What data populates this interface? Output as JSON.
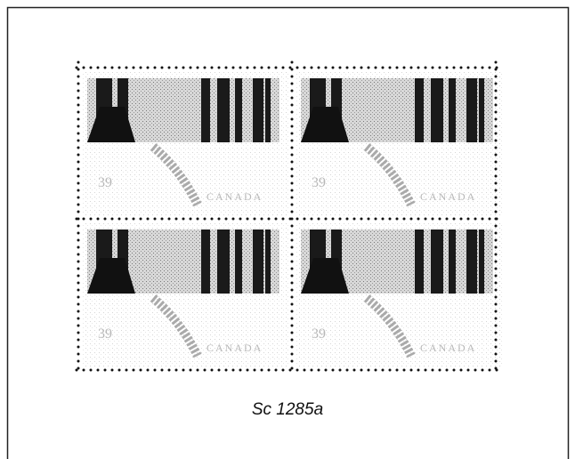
{
  "caption": "Sc 1285a",
  "stamps": [
    {
      "denomination": "39",
      "country": "CANADA"
    },
    {
      "denomination": "39",
      "country": "CANADA"
    },
    {
      "denomination": "39",
      "country": "CANADA"
    },
    {
      "denomination": "39",
      "country": "CANADA"
    }
  ]
}
